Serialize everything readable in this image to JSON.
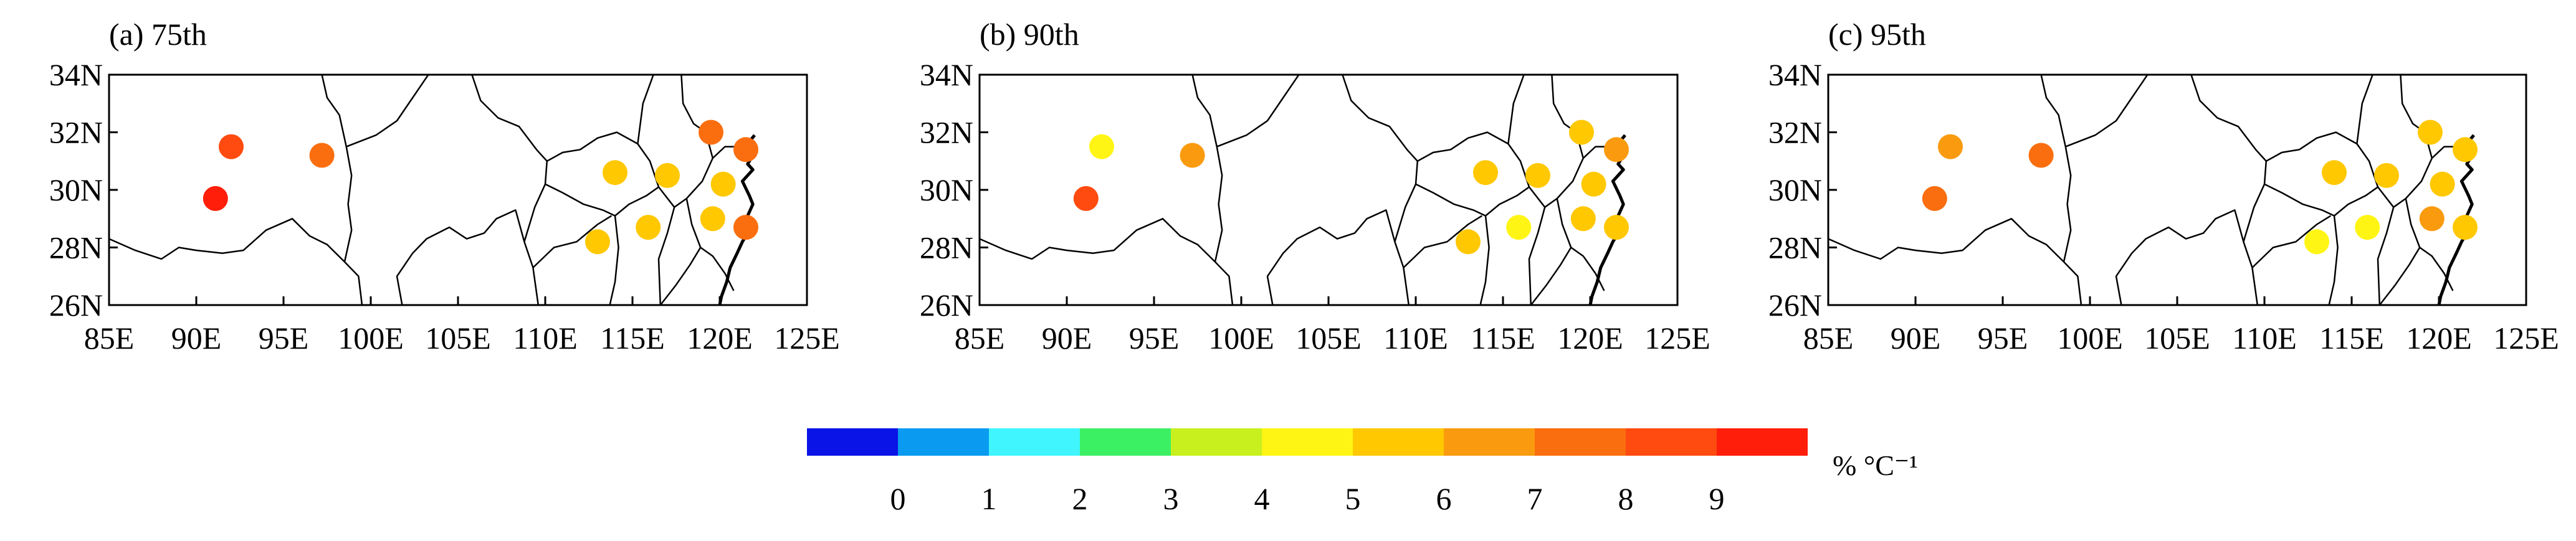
{
  "panels": [
    {
      "title": "(a) 75th",
      "stations": [
        {
          "lon": 92.0,
          "lat": 31.5,
          "value": 8.3
        },
        {
          "lon": 91.1,
          "lat": 29.7,
          "value": 9.0
        },
        {
          "lon": 97.2,
          "lat": 31.2,
          "value": 7.6
        },
        {
          "lon": 119.5,
          "lat": 32.0,
          "value": 7.2
        },
        {
          "lon": 121.5,
          "lat": 31.4,
          "value": 7.6
        },
        {
          "lon": 114.0,
          "lat": 30.6,
          "value": 5.6
        },
        {
          "lon": 117.0,
          "lat": 30.5,
          "value": 5.8
        },
        {
          "lon": 120.2,
          "lat": 30.2,
          "value": 5.7
        },
        {
          "lon": 113.0,
          "lat": 28.2,
          "value": 5.7
        },
        {
          "lon": 115.9,
          "lat": 28.7,
          "value": 5.8
        },
        {
          "lon": 119.6,
          "lat": 29.0,
          "value": 5.8
        },
        {
          "lon": 121.5,
          "lat": 28.7,
          "value": 7.0
        }
      ]
    },
    {
      "title": "(b) 90th",
      "stations": [
        {
          "lon": 92.0,
          "lat": 31.5,
          "value": 4.6
        },
        {
          "lon": 91.1,
          "lat": 29.7,
          "value": 8.4
        },
        {
          "lon": 97.2,
          "lat": 31.2,
          "value": 6.6
        },
        {
          "lon": 119.5,
          "lat": 32.0,
          "value": 5.5
        },
        {
          "lon": 121.5,
          "lat": 31.4,
          "value": 6.8
        },
        {
          "lon": 114.0,
          "lat": 30.6,
          "value": 5.6
        },
        {
          "lon": 117.0,
          "lat": 30.5,
          "value": 5.9
        },
        {
          "lon": 120.2,
          "lat": 30.2,
          "value": 5.8
        },
        {
          "lon": 113.0,
          "lat": 28.2,
          "value": 5.7
        },
        {
          "lon": 115.9,
          "lat": 28.7,
          "value": 4.6
        },
        {
          "lon": 119.6,
          "lat": 29.0,
          "value": 5.7
        },
        {
          "lon": 121.5,
          "lat": 28.7,
          "value": 5.3
        }
      ]
    },
    {
      "title": "(c) 95th",
      "stations": [
        {
          "lon": 92.0,
          "lat": 31.5,
          "value": 6.6
        },
        {
          "lon": 91.1,
          "lat": 29.7,
          "value": 7.1
        },
        {
          "lon": 97.2,
          "lat": 31.2,
          "value": 7.8
        },
        {
          "lon": 119.5,
          "lat": 32.0,
          "value": 5.8
        },
        {
          "lon": 121.5,
          "lat": 31.4,
          "value": 5.2
        },
        {
          "lon": 114.0,
          "lat": 30.6,
          "value": 5.9
        },
        {
          "lon": 117.0,
          "lat": 30.5,
          "value": 5.7
        },
        {
          "lon": 120.2,
          "lat": 30.2,
          "value": 5.8
        },
        {
          "lon": 113.0,
          "lat": 28.2,
          "value": 4.6
        },
        {
          "lon": 115.9,
          "lat": 28.7,
          "value": 4.8
        },
        {
          "lon": 119.6,
          "lat": 29.0,
          "value": 6.0
        },
        {
          "lon": 121.5,
          "lat": 28.7,
          "value": 5.4
        }
      ]
    }
  ],
  "axes": {
    "lon_ticks": [
      "85E",
      "90E",
      "95E",
      "100E",
      "105E",
      "110E",
      "115E",
      "120E",
      "125E"
    ],
    "lat_ticks": [
      "34N",
      "32N",
      "30N",
      "28N",
      "26N"
    ],
    "lon_range": [
      85,
      125
    ],
    "lat_range": [
      26,
      34
    ]
  },
  "colorbar": {
    "colors": [
      "#0a14e6",
      "#0a9bf0",
      "#41f5ff",
      "#3cf064",
      "#c8f01e",
      "#fff514",
      "#ffc800",
      "#fa9b0f",
      "#fa6e0f",
      "#ff4b0f",
      "#ff1e0a"
    ],
    "tick_labels": [
      "0",
      "1",
      "2",
      "3",
      "4",
      "5",
      "6",
      "7",
      "8",
      "9"
    ],
    "unit": "% °C⁻¹"
  }
}
